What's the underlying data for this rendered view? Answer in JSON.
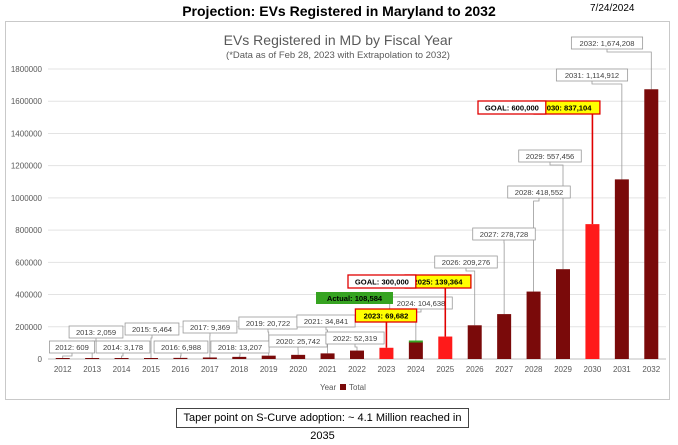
{
  "page": {
    "title": "Projection: EVs Registered in Maryland to 2032",
    "date": "7/24/2024",
    "footer_note": "Taper point on S-Curve adoption: ~ 4.1 Million reached in 2035"
  },
  "colors": {
    "total": "#7a0a0a",
    "projection": "#ff1a1a",
    "actual_bar": "#36a321",
    "highlight": "#ffff00",
    "label_border": "#e00000"
  },
  "chart_data": {
    "type": "bar",
    "title": "EVs Registered in MD by Fiscal Year",
    "subtitle": "(*Data as of Feb 28, 2023 with Extrapolation to 2032)",
    "xlabel": "Year",
    "ylabel": "",
    "ylim": [
      0,
      1800000
    ],
    "y_ticks": [
      0,
      200000,
      400000,
      600000,
      800000,
      1000000,
      1200000,
      1400000,
      1600000,
      1800000
    ],
    "grid": true,
    "legend": {
      "position": "bottom",
      "items": [
        "Year",
        "Total"
      ]
    },
    "categories": [
      "2012",
      "2013",
      "2014",
      "2015",
      "2016",
      "2017",
      "2018",
      "2019",
      "2020",
      "2021",
      "2022",
      "2023",
      "2024",
      "2025",
      "2026",
      "2027",
      "2028",
      "2029",
      "2030",
      "2031",
      "2032"
    ],
    "series": [
      {
        "name": "Total",
        "values": [
          609,
          2059,
          3178,
          5464,
          6988,
          9369,
          13207,
          20722,
          25742,
          34841,
          52319,
          69682,
          104638,
          139364,
          209276,
          278728,
          418552,
          557456,
          837104,
          1114912,
          1674208
        ]
      }
    ],
    "projection_years": [
      "2023",
      "2025",
      "2030"
    ],
    "data_labels": [
      "2012: 609",
      "2013: 2,059",
      "2014: 3,178",
      "2015: 5,464",
      "2016: 6,988",
      "2017: 9,369",
      "2018: 13,207",
      "2019: 20,722",
      "2020: 25,742",
      "2021: 34,841",
      "2022: 52,319",
      "2023: 69,682",
      "2024: 104,638",
      "2025: 139,364",
      "2026: 209,276",
      "2027: 278,728",
      "2028: 418,552",
      "2029: 557,456",
      "2030: 837,104",
      "2031: 1,114,912",
      "2032: 1,674,208"
    ],
    "annotations": [
      {
        "text": "Actual: 108,584",
        "value": 108584,
        "year": "2024"
      },
      {
        "text": "GOAL: 300,000",
        "value": 300000,
        "year": "2025"
      },
      {
        "text": "GOAL: 600,000",
        "value": 600000,
        "year": "2030"
      }
    ]
  }
}
